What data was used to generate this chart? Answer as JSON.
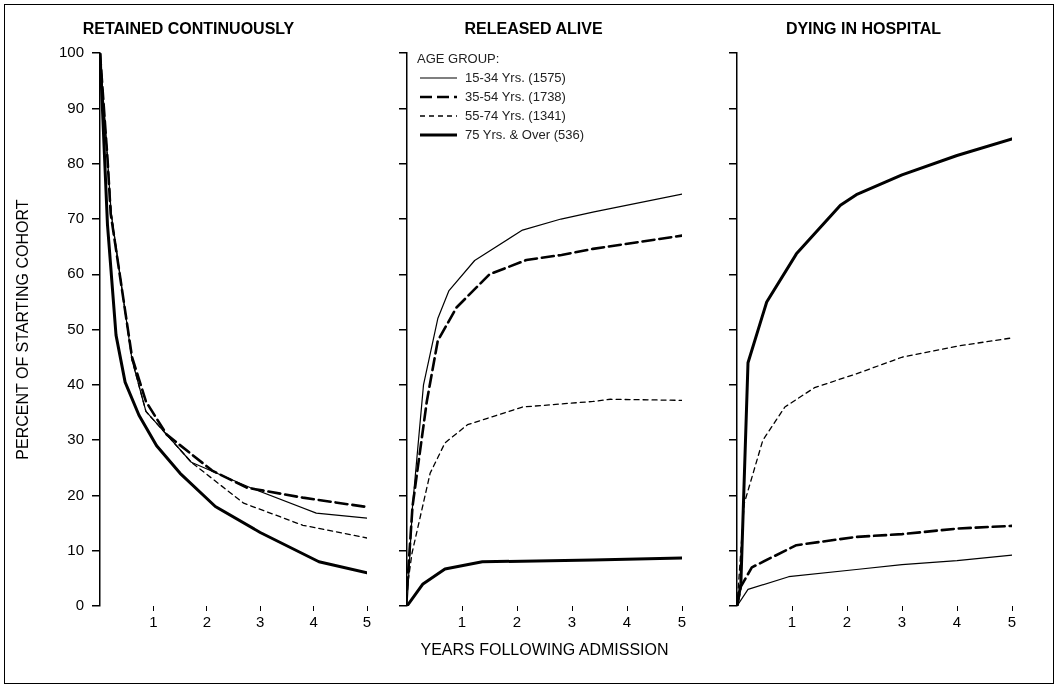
{
  "chart_data": [
    {
      "type": "line",
      "title": "RETAINED CONTINUOUSLY",
      "ylabel": "PERCENT OF STARTING COHORT",
      "xlim": [
        0,
        5
      ],
      "xticks": [
        1,
        2,
        3,
        4,
        5
      ],
      "ylim": [
        0,
        100
      ],
      "yticks": [
        0,
        10,
        20,
        30,
        40,
        50,
        60,
        70,
        80,
        90,
        100
      ],
      "grid": false,
      "marker": "none",
      "series": [
        {
          "color": "#000000",
          "line_style": "solid",
          "x": [
            0,
            0.14,
            0.21,
            0.6,
            0.86,
            1.71,
            2.82,
            4.05,
            5
          ],
          "values": [
            100,
            81,
            71,
            44.5,
            35.2,
            26,
            21.4,
            16.8,
            15.9
          ]
        },
        {
          "color": "#000000",
          "line_style": "dashed",
          "x": [
            0,
            0.14,
            0.2,
            0.6,
            0.86,
            1.25,
            2.1,
            2.75,
            3.8,
            5
          ],
          "values": [
            100,
            81,
            71,
            45,
            37,
            31,
            24.5,
            21.4,
            19.6,
            17.9
          ]
        },
        {
          "color": "#000000",
          "line_style": "dotted",
          "x": [
            0,
            0.14,
            0.21,
            0.6,
            0.86,
            1.71,
            2.69,
            3.8,
            5
          ],
          "values": [
            100,
            81,
            71,
            44.5,
            35.2,
            26,
            18.6,
            14.6,
            12.3
          ]
        },
        {
          "color": "#000000",
          "line_style": "solid",
          "x": [
            0,
            0.05,
            0.14,
            0.3,
            0.47,
            0.73,
            1.06,
            1.5,
            2.16,
            3,
            4.1,
            5
          ],
          "values": [
            100,
            89,
            69,
            49,
            40.5,
            34.5,
            29,
            24,
            18,
            13.3,
            8,
            6
          ]
        }
      ]
    },
    {
      "type": "line",
      "title": "RELEASED ALIVE",
      "xlabel": "YEARS FOLLOWING ADMISSION",
      "legend_title": "AGE GROUP:",
      "legend": "top left",
      "tick_labels": "x",
      "xlim": [
        0,
        5
      ],
      "xticks": [
        1,
        2,
        3,
        4,
        5
      ],
      "ylim": [
        0,
        100
      ],
      "yticks": [
        {
          "value": 0,
          "label": null
        },
        {
          "value": 10,
          "label": null
        },
        {
          "value": 20,
          "label": null
        },
        {
          "value": 30,
          "label": null
        },
        {
          "value": 40,
          "label": null
        },
        {
          "value": 50,
          "label": null
        },
        {
          "value": 60,
          "label": null
        },
        {
          "value": 70,
          "label": null
        },
        {
          "value": 80,
          "label": null
        },
        {
          "value": 90,
          "label": null
        },
        {
          "value": 100,
          "label": null
        }
      ],
      "grid": false,
      "marker": "none",
      "series": [
        {
          "name": "15-34 Yrs. (1575)",
          "color": "#000000",
          "line_style": "solid",
          "x": [
            0,
            0.1,
            0.3,
            0.56,
            0.76,
            1.23,
            2.1,
            2.8,
            3.4,
            5
          ],
          "values": [
            0,
            18,
            40,
            52,
            57,
            62.5,
            68,
            70,
            71.3,
            74.5
          ]
        },
        {
          "name": "35-54 Yrs. (1738)",
          "color": "#000000",
          "line_style": "dashed",
          "x": [
            0,
            0.1,
            0.36,
            0.56,
            0.9,
            1.5,
            2.17,
            2.81,
            3.38,
            5
          ],
          "values": [
            3,
            18,
            37,
            48,
            54,
            60,
            62.6,
            63.5,
            64.6,
            67
          ]
        },
        {
          "name": "55-74 Yrs. (1341)",
          "color": "#000000",
          "line_style": "dotted",
          "x": [
            0,
            0.09,
            0.42,
            0.69,
            1.1,
            2.1,
            3.38,
            3.7,
            5
          ],
          "values": [
            3,
            9.5,
            24,
            29.5,
            32.8,
            36,
            37,
            37.4,
            37.2
          ]
        },
        {
          "name": "75 Yrs. & Over (536)",
          "color": "#000000",
          "line_style": "solid",
          "x": [
            0,
            0.29,
            0.69,
            1.37,
            3.38,
            5
          ],
          "values": [
            0,
            4,
            6.7,
            8,
            8.3,
            8.7
          ]
        }
      ]
    },
    {
      "type": "line",
      "title": "DYING IN HOSPITAL",
      "tick_labels": "x",
      "xlim": [
        0,
        5
      ],
      "xticks": [
        1,
        2,
        3,
        4,
        5
      ],
      "ylim": [
        0,
        100
      ],
      "yticks": [
        {
          "value": 0,
          "label": null
        },
        {
          "value": 10,
          "label": null
        },
        {
          "value": 20,
          "label": null
        },
        {
          "value": 30,
          "label": null
        },
        {
          "value": 40,
          "label": null
        },
        {
          "value": 50,
          "label": null
        },
        {
          "value": 60,
          "label": null
        },
        {
          "value": 70,
          "label": null
        },
        {
          "value": 80,
          "label": null
        },
        {
          "value": 90,
          "label": null
        },
        {
          "value": 100,
          "label": null
        }
      ],
      "grid": false,
      "marker": "none",
      "series": [
        {
          "color": "#000000",
          "line_style": "solid",
          "x": [
            0,
            0.2,
            0.94,
            2.17,
            3,
            4,
            5
          ],
          "values": [
            0,
            3,
            5.3,
            6.6,
            7.5,
            8.2,
            9.2
          ]
        },
        {
          "color": "#000000",
          "line_style": "dashed",
          "x": [
            0,
            0.07,
            0.27,
            1.08,
            2.17,
            3,
            4,
            5
          ],
          "values": [
            0,
            3.5,
            7,
            11,
            12.5,
            13,
            14,
            14.5
          ]
        },
        {
          "color": "#000000",
          "line_style": "dotted",
          "x": [
            0,
            0.13,
            0.47,
            0.87,
            1.41,
            2.17,
            3,
            4,
            5
          ],
          "values": [
            0,
            18.5,
            30,
            36,
            39.5,
            42,
            45,
            47,
            48.5
          ]
        },
        {
          "color": "#000000",
          "line_style": "solid",
          "x": [
            0,
            0.07,
            0.2,
            0.54,
            1.08,
            1.88,
            2.17,
            3,
            4,
            5
          ],
          "values": [
            0,
            4,
            44,
            55,
            63.7,
            72.5,
            74.4,
            78,
            81.5,
            84.5
          ]
        }
      ]
    }
  ]
}
